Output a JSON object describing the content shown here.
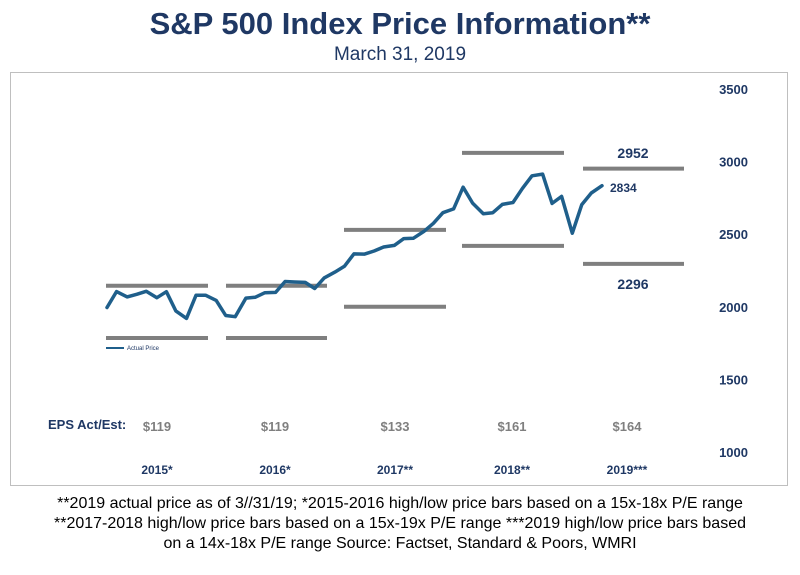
{
  "title": "S&P 500 Index Price Information**",
  "subtitle": "March 31, 2019",
  "colors": {
    "price_line": "#1f5f8b",
    "range_bars": "#7f7f7f",
    "text_navy": "#1f3864"
  },
  "chart_data": {
    "type": "line",
    "y_axis": {
      "position": "right",
      "ylim": [
        1000,
        3500
      ],
      "ticks": [
        1000,
        1500,
        2000,
        2500,
        3000,
        3500
      ]
    },
    "years": [
      "2015*",
      "2016*",
      "2017**",
      "2018**",
      "2019***"
    ],
    "eps_label": "EPS Act/Est:",
    "eps": [
      "$119",
      "$119",
      "$133",
      "$161",
      "$164"
    ],
    "legend": {
      "label": "Actual Price",
      "placement": "left"
    },
    "series": [
      {
        "name": "Actual Price",
        "x": [
          2015.0,
          2015.08,
          2015.17,
          2015.25,
          2015.33,
          2015.42,
          2015.5,
          2015.58,
          2015.67,
          2015.75,
          2015.83,
          2015.92,
          2016.0,
          2016.08,
          2016.17,
          2016.25,
          2016.33,
          2016.42,
          2016.5,
          2016.58,
          2016.67,
          2016.75,
          2016.83,
          2016.92,
          2017.0,
          2017.08,
          2017.17,
          2017.25,
          2017.33,
          2017.42,
          2017.5,
          2017.58,
          2017.67,
          2017.75,
          2017.83,
          2017.92,
          2018.0,
          2018.08,
          2018.17,
          2018.25,
          2018.33,
          2018.42,
          2018.5,
          2018.58,
          2018.67,
          2018.75,
          2018.83,
          2018.92,
          2019.0,
          2019.08,
          2019.17
        ],
        "values": [
          1995,
          2105,
          2068,
          2086,
          2107,
          2063,
          2104,
          1972,
          1920,
          2079,
          2080,
          2044,
          1940,
          1932,
          2060,
          2066,
          2097,
          2099,
          2174,
          2171,
          2168,
          2126,
          2199,
          2239,
          2279,
          2364,
          2363,
          2384,
          2412,
          2423,
          2470,
          2472,
          2519,
          2575,
          2648,
          2674,
          2824,
          2714,
          2641,
          2648,
          2705,
          2718,
          2816,
          2902,
          2914,
          2712,
          2760,
          2507,
          2704,
          2784,
          2834
        ]
      }
    ],
    "range_bars": [
      {
        "label": "2015*",
        "high": 2145,
        "low": 1785
      },
      {
        "label": "2016*",
        "high": 2145,
        "low": 1785
      },
      {
        "label": "2017**",
        "high": 2530,
        "low": 2000
      },
      {
        "label": "2018**",
        "high": 3060,
        "low": 2420
      },
      {
        "label": "2019***",
        "high": 2952,
        "low": 2296
      }
    ],
    "annotations": {
      "high_2019": "2952",
      "low_2019": "2296",
      "last_price": "2834"
    }
  },
  "footnotes": [
    "**2019 actual price as of 3//31/19; *2015-2016 high/low price bars based on a 15x-18x P/E range",
    "**2017-2018 high/low price bars based on a 15x-19x P/E range ***2019 high/low price bars based",
    "on a 14x-18x P/E range Source: Factset, Standard & Poors, WMRI"
  ]
}
